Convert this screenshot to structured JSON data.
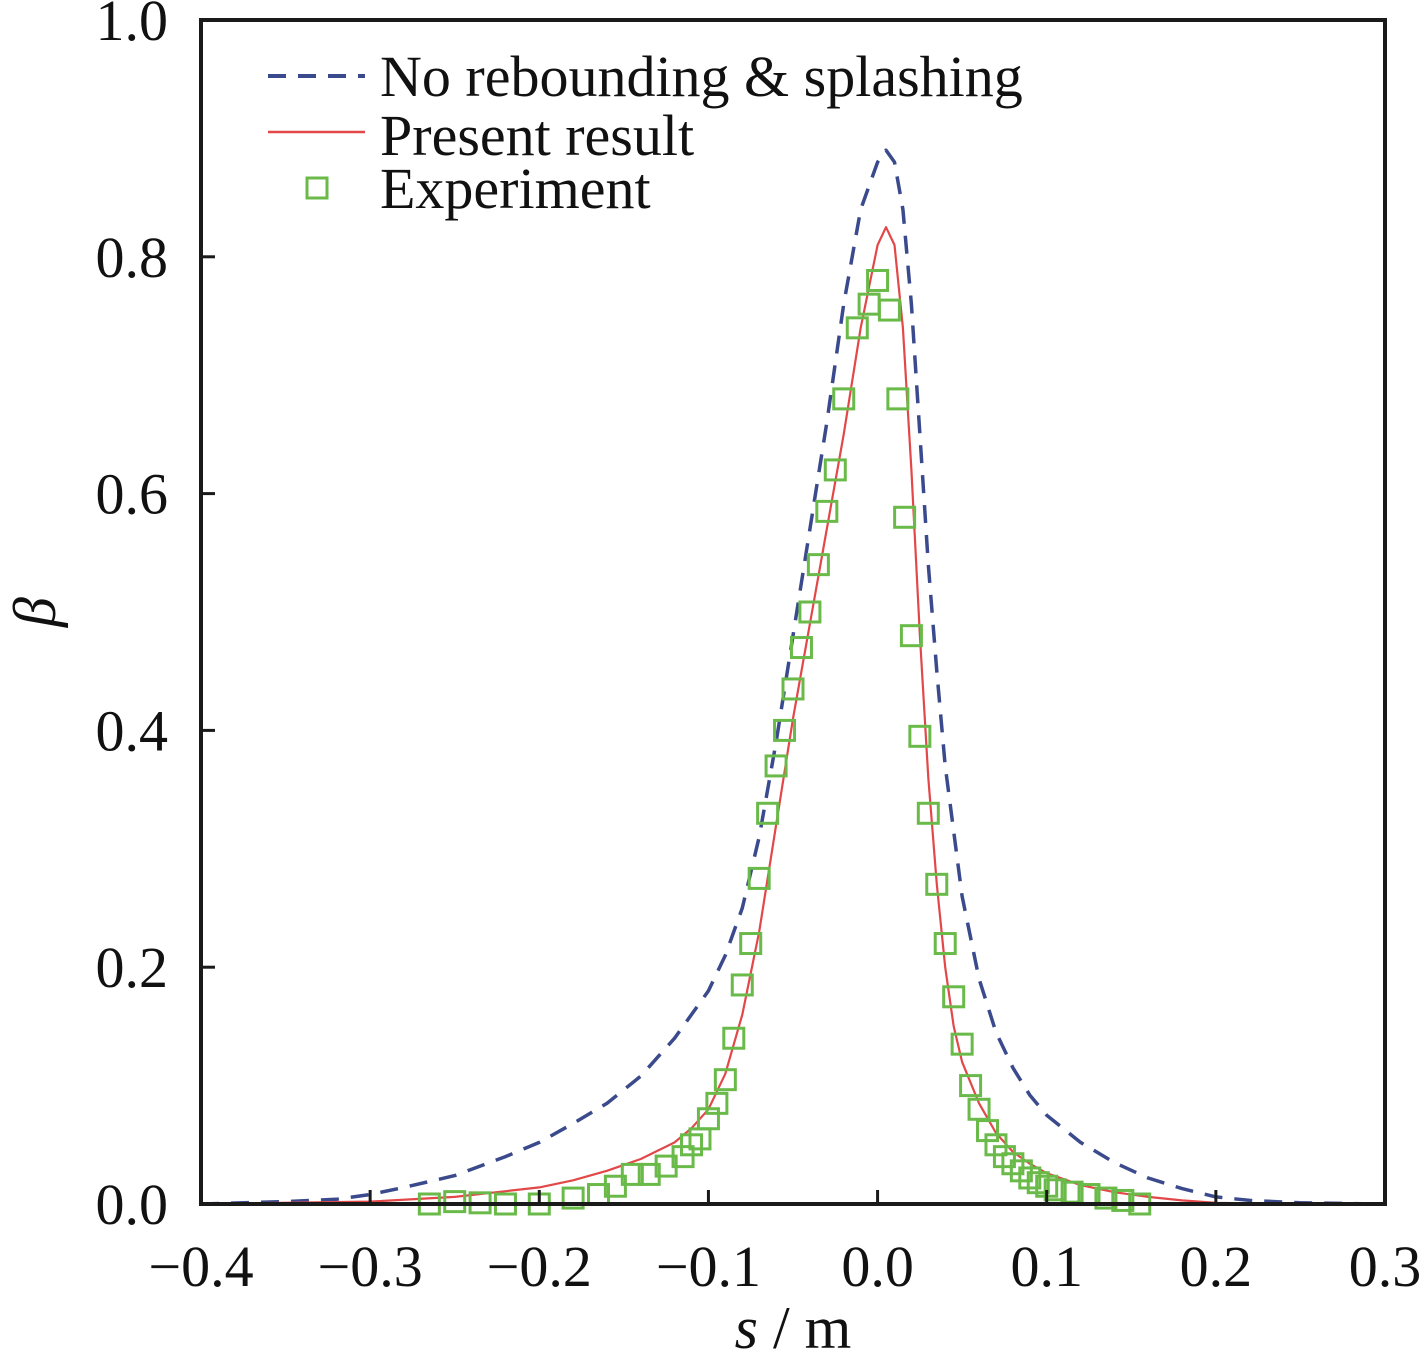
{
  "chart_data": {
    "type": "line",
    "xlabel": {
      "var": "s",
      "unit": " / m"
    },
    "ylabel": "β",
    "xlim": [
      -0.4,
      0.3
    ],
    "ylim": [
      0.0,
      1.0
    ],
    "xticks": [
      -0.4,
      -0.3,
      -0.2,
      -0.1,
      0.0,
      0.1,
      0.2,
      0.3
    ],
    "xtick_labels": [
      "−0.4",
      "−0.3",
      "−0.2",
      "−0.1",
      "0.0",
      "0.1",
      "0.2",
      "0.3"
    ],
    "yticks": [
      0.0,
      0.2,
      0.4,
      0.6,
      0.8,
      1.0
    ],
    "ytick_labels": [
      "0.0",
      "0.2",
      "0.4",
      "0.6",
      "0.8",
      "1.0"
    ],
    "grid": false,
    "legend_position": "top-left",
    "series": [
      {
        "name": "No rebounding & splashing",
        "style": "dashed",
        "color": "#3a4a8c",
        "x": [
          -0.4,
          -0.35,
          -0.32,
          -0.3,
          -0.28,
          -0.25,
          -0.22,
          -0.2,
          -0.18,
          -0.16,
          -0.14,
          -0.12,
          -0.1,
          -0.09,
          -0.08,
          -0.07,
          -0.06,
          -0.05,
          -0.04,
          -0.03,
          -0.02,
          -0.01,
          0.0,
          0.005,
          0.01,
          0.015,
          0.02,
          0.025,
          0.03,
          0.035,
          0.04,
          0.05,
          0.06,
          0.07,
          0.08,
          0.09,
          0.1,
          0.12,
          0.14,
          0.16,
          0.18,
          0.2,
          0.22,
          0.25,
          0.3
        ],
        "y": [
          0.0,
          0.002,
          0.004,
          0.008,
          0.014,
          0.024,
          0.04,
          0.052,
          0.068,
          0.085,
          0.108,
          0.14,
          0.18,
          0.21,
          0.25,
          0.31,
          0.39,
          0.48,
          0.57,
          0.66,
          0.76,
          0.84,
          0.88,
          0.89,
          0.88,
          0.84,
          0.76,
          0.65,
          0.54,
          0.45,
          0.37,
          0.26,
          0.19,
          0.145,
          0.115,
          0.092,
          0.075,
          0.052,
          0.035,
          0.022,
          0.013,
          0.006,
          0.003,
          0.001,
          0.0
        ]
      },
      {
        "name": "Present result",
        "style": "solid",
        "color": "#e24848",
        "x": [
          -0.4,
          -0.3,
          -0.25,
          -0.2,
          -0.18,
          -0.16,
          -0.14,
          -0.12,
          -0.11,
          -0.1,
          -0.09,
          -0.08,
          -0.07,
          -0.06,
          -0.05,
          -0.04,
          -0.03,
          -0.02,
          -0.01,
          0.0,
          0.005,
          0.01,
          0.015,
          0.02,
          0.025,
          0.03,
          0.035,
          0.04,
          0.045,
          0.05,
          0.06,
          0.07,
          0.08,
          0.09,
          0.1,
          0.12,
          0.14,
          0.16,
          0.18,
          0.2,
          0.25,
          0.3
        ],
        "y": [
          0.0,
          0.002,
          0.006,
          0.014,
          0.02,
          0.028,
          0.038,
          0.052,
          0.064,
          0.08,
          0.11,
          0.16,
          0.23,
          0.32,
          0.41,
          0.49,
          0.57,
          0.65,
          0.74,
          0.81,
          0.825,
          0.81,
          0.74,
          0.62,
          0.48,
          0.36,
          0.27,
          0.2,
          0.15,
          0.12,
          0.085,
          0.06,
          0.044,
          0.034,
          0.026,
          0.016,
          0.01,
          0.006,
          0.003,
          0.001,
          0.0,
          0.0
        ]
      },
      {
        "name": "Experiment",
        "style": "markers",
        "marker": "square",
        "color": "#6aba4a",
        "x": [
          -0.265,
          -0.25,
          -0.235,
          -0.22,
          -0.2,
          -0.18,
          -0.165,
          -0.155,
          -0.145,
          -0.135,
          -0.125,
          -0.115,
          -0.11,
          -0.105,
          -0.1,
          -0.095,
          -0.09,
          -0.085,
          -0.08,
          -0.075,
          -0.07,
          -0.065,
          -0.06,
          -0.055,
          -0.05,
          -0.045,
          -0.04,
          -0.035,
          -0.03,
          -0.025,
          -0.02,
          -0.012,
          -0.005,
          0.0,
          0.007,
          0.012,
          0.016,
          0.02,
          0.025,
          0.03,
          0.035,
          0.04,
          0.045,
          0.05,
          0.055,
          0.06,
          0.065,
          0.07,
          0.075,
          0.08,
          0.085,
          0.09,
          0.095,
          0.1,
          0.105,
          0.115,
          0.125,
          0.135,
          0.145,
          0.155
        ],
        "y": [
          0.0,
          0.002,
          0.001,
          0.0,
          0.0,
          0.005,
          0.008,
          0.015,
          0.025,
          0.025,
          0.032,
          0.04,
          0.05,
          0.055,
          0.072,
          0.085,
          0.105,
          0.14,
          0.185,
          0.22,
          0.275,
          0.33,
          0.37,
          0.4,
          0.435,
          0.47,
          0.5,
          0.54,
          0.585,
          0.62,
          0.68,
          0.74,
          0.76,
          0.78,
          0.755,
          0.68,
          0.58,
          0.48,
          0.395,
          0.33,
          0.27,
          0.22,
          0.175,
          0.135,
          0.1,
          0.08,
          0.062,
          0.05,
          0.04,
          0.034,
          0.028,
          0.022,
          0.018,
          0.015,
          0.012,
          0.01,
          0.008,
          0.005,
          0.003,
          0.0
        ]
      }
    ]
  }
}
